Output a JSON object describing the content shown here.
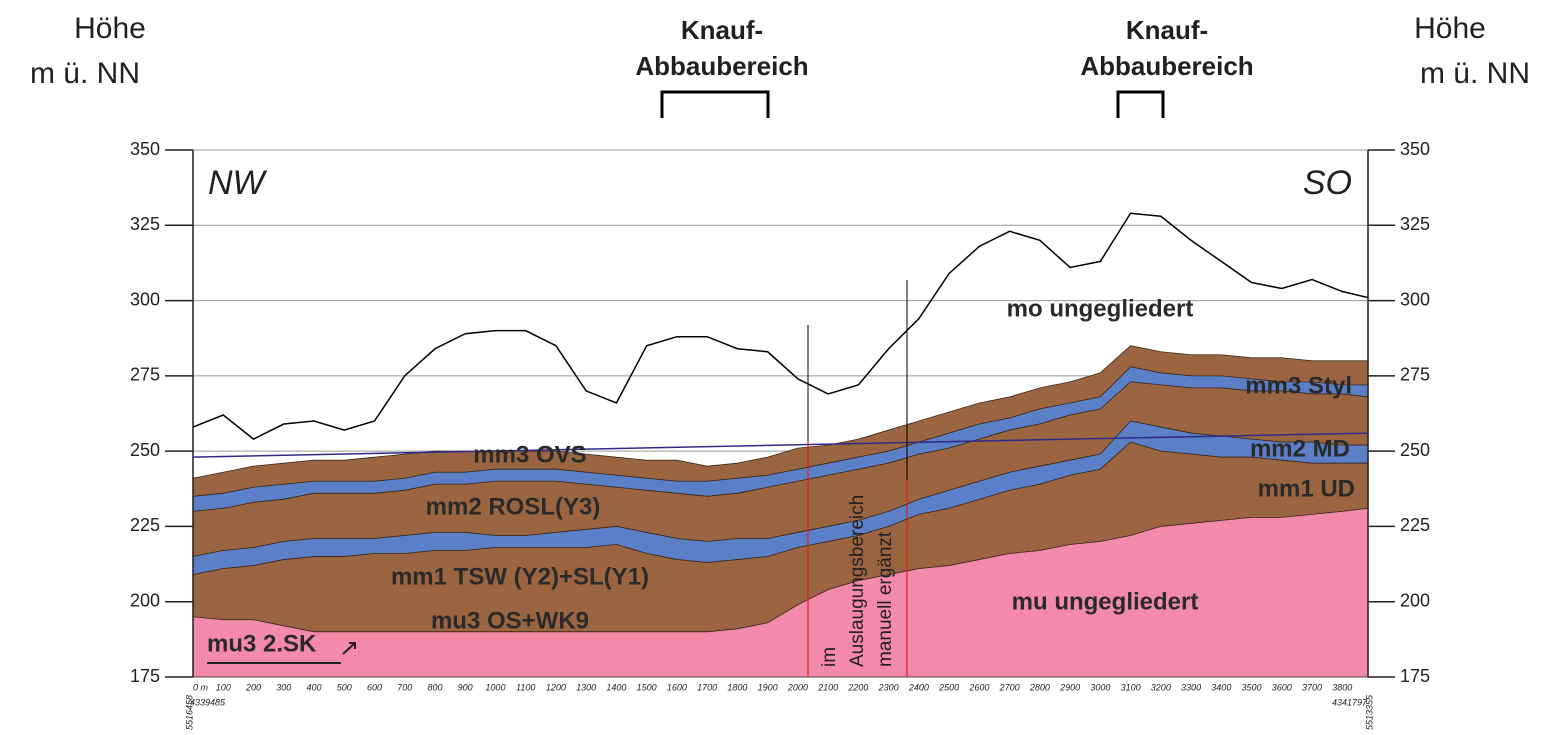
{
  "chart_data": {
    "type": "area",
    "y_label": [
      "Höhe",
      "m ü. NN"
    ],
    "y2_label": [
      "Höhe",
      "m ü. NN"
    ],
    "headers": [
      [
        "Knauf-",
        "Abbaubereich"
      ],
      [
        "Knauf-",
        "Abbaubereich"
      ]
    ],
    "annotations": [
      "NW",
      "SO",
      "mo ungegliedert",
      "mm3 Styl",
      "mm2 MD",
      "mm1 UD",
      "mm3 OVS",
      "mm2 ROSL(Y3)",
      "mm1 TSW (Y2)+SL(Y1)",
      "mu3 OS+WK9",
      "mu3 2.SK",
      "mu ungegliedert",
      "im",
      "Auslaugungsbereich",
      "manuell ergänzt"
    ],
    "coordinates": [
      "5516458",
      "4339485",
      "4341797",
      "5513355"
    ],
    "xlim": [
      0,
      3885
    ],
    "xticks": [
      {
        "value": 0,
        "label": "0 m"
      },
      100,
      200,
      300,
      400,
      500,
      600,
      700,
      800,
      900,
      1000,
      1100,
      1200,
      1300,
      1400,
      1500,
      1600,
      1700,
      1800,
      1900,
      2000,
      2100,
      2200,
      2300,
      2400,
      2500,
      2600,
      2700,
      2800,
      2900,
      3000,
      3100,
      3200,
      3300,
      3400,
      3500,
      3600,
      3700,
      3800
    ],
    "ylim": [
      175,
      350
    ],
    "yticks": [
      175,
      200,
      225,
      250,
      275,
      300,
      325,
      350
    ],
    "y2lim": [
      175,
      350
    ],
    "y2ticks": [
      175,
      200,
      225,
      250,
      275,
      300,
      325,
      350
    ],
    "grid": true,
    "x": [
      0,
      100,
      200,
      300,
      400,
      500,
      600,
      700,
      800,
      900,
      1000,
      1100,
      1200,
      1300,
      1400,
      1500,
      1600,
      1700,
      1800,
      1900,
      2000,
      2100,
      2200,
      2300,
      2400,
      2500,
      2600,
      2700,
      2800,
      2900,
      3000,
      3100,
      3200,
      3300,
      3400,
      3500,
      3600,
      3700,
      3800,
      3885
    ],
    "series": [
      {
        "style": "line",
        "color": "#000000",
        "values": [
          258,
          262,
          254,
          259,
          260,
          257,
          260,
          275,
          284,
          289,
          290,
          290,
          285,
          270,
          266,
          285,
          288,
          288,
          284,
          283,
          274,
          269,
          272,
          284,
          294,
          309,
          318,
          323,
          320,
          311,
          313,
          329,
          328,
          320,
          313,
          306,
          304,
          307,
          303,
          301
        ]
      },
      {
        "style": "band",
        "color": "#9c6541",
        "values": [
          241,
          243,
          245,
          246,
          247,
          247,
          248,
          249,
          250,
          250,
          250,
          250,
          250,
          249,
          248,
          247,
          247,
          245,
          246,
          248,
          251,
          252,
          254,
          257,
          260,
          263,
          266,
          268,
          271,
          273,
          276,
          285,
          283,
          282,
          282,
          281,
          281,
          280,
          280,
          280
        ]
      },
      {
        "style": "band",
        "color": "#5b80c8",
        "values": [
          235,
          236,
          238,
          239,
          240,
          240,
          240,
          241,
          243,
          243,
          244,
          244,
          244,
          243,
          242,
          241,
          240,
          240,
          241,
          242,
          244,
          246,
          248,
          250,
          253,
          256,
          259,
          261,
          264,
          266,
          268,
          278,
          276,
          275,
          275,
          274,
          273,
          273,
          272,
          272
        ]
      },
      {
        "style": "band",
        "color": "#9c6541",
        "values": [
          230,
          231,
          233,
          234,
          236,
          236,
          236,
          237,
          239,
          239,
          240,
          240,
          240,
          239,
          238,
          237,
          236,
          235,
          236,
          238,
          240,
          242,
          244,
          246,
          249,
          251,
          254,
          257,
          259,
          262,
          264,
          273,
          272,
          271,
          271,
          270,
          270,
          269,
          269,
          268
        ]
      },
      {
        "style": "band",
        "color": "#5b80c8",
        "values": [
          215,
          217,
          218,
          220,
          221,
          221,
          221,
          222,
          223,
          223,
          222,
          222,
          223,
          224,
          225,
          223,
          221,
          220,
          221,
          221,
          223,
          225,
          227,
          230,
          234,
          237,
          240,
          243,
          245,
          247,
          249,
          260,
          258,
          256,
          255,
          254,
          253,
          253,
          252,
          252
        ]
      },
      {
        "style": "band",
        "color": "#9c6541",
        "values": [
          209,
          211,
          212,
          214,
          215,
          215,
          216,
          216,
          217,
          217,
          218,
          218,
          218,
          218,
          219,
          216,
          214,
          213,
          214,
          215,
          218,
          220,
          222,
          225,
          229,
          231,
          234,
          237,
          239,
          242,
          244,
          253,
          250,
          249,
          248,
          248,
          247,
          246,
          246,
          246
        ]
      },
      {
        "style": "band",
        "color": "#f48aab",
        "values": [
          195,
          194,
          194,
          192,
          190,
          190,
          190,
          190,
          190,
          190,
          190,
          190,
          190,
          190,
          190,
          190,
          190,
          190,
          191,
          193,
          199,
          204,
          207,
          209,
          211,
          212,
          214,
          216,
          217,
          219,
          220,
          222,
          225,
          226,
          227,
          228,
          228,
          229,
          230,
          231
        ]
      }
    ],
    "water_line": {
      "color": "#2e2a8c",
      "x": [
        0,
        3885
      ],
      "values": [
        248,
        256
      ]
    }
  }
}
